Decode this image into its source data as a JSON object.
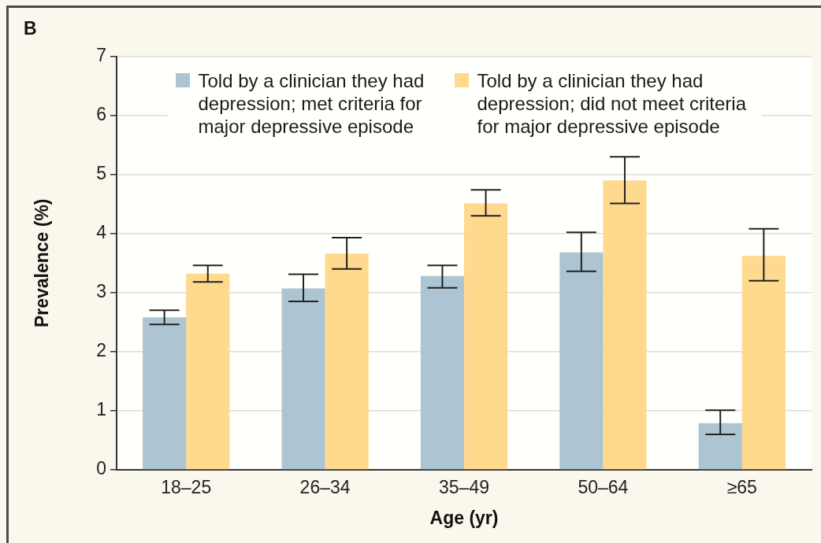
{
  "chart_data": {
    "type": "bar",
    "title": "B",
    "xlabel": "Age (yr)",
    "ylabel": "Prevalence (%)",
    "categories": [
      "18–25",
      "26–34",
      "35–49",
      "50–64",
      "≥65"
    ],
    "series": [
      {
        "name": "Told by a clinician they had depression; met criteria for major depressive episode",
        "color": "#adc4d2",
        "values": [
          2.58,
          3.07,
          3.28,
          3.68,
          0.79
        ],
        "errors": [
          [
            2.46,
            2.7
          ],
          [
            2.85,
            3.31
          ],
          [
            3.08,
            3.46
          ],
          [
            3.36,
            4.02
          ],
          [
            0.6,
            1.01
          ]
        ]
      },
      {
        "name": "Told by a clinician they had depression; did not meet criteria for major depressive episode",
        "color": "#ffd98e",
        "values": [
          3.32,
          3.66,
          4.51,
          4.9,
          3.62
        ],
        "errors": [
          [
            3.18,
            3.46
          ],
          [
            3.4,
            3.93
          ],
          [
            4.3,
            4.74
          ],
          [
            4.51,
            5.3
          ],
          [
            3.2,
            4.08
          ]
        ]
      }
    ],
    "ylim": [
      0,
      7
    ],
    "yticks": [
      0,
      1,
      2,
      3,
      4,
      5,
      6,
      7
    ],
    "grid": "y",
    "legend": "top"
  }
}
